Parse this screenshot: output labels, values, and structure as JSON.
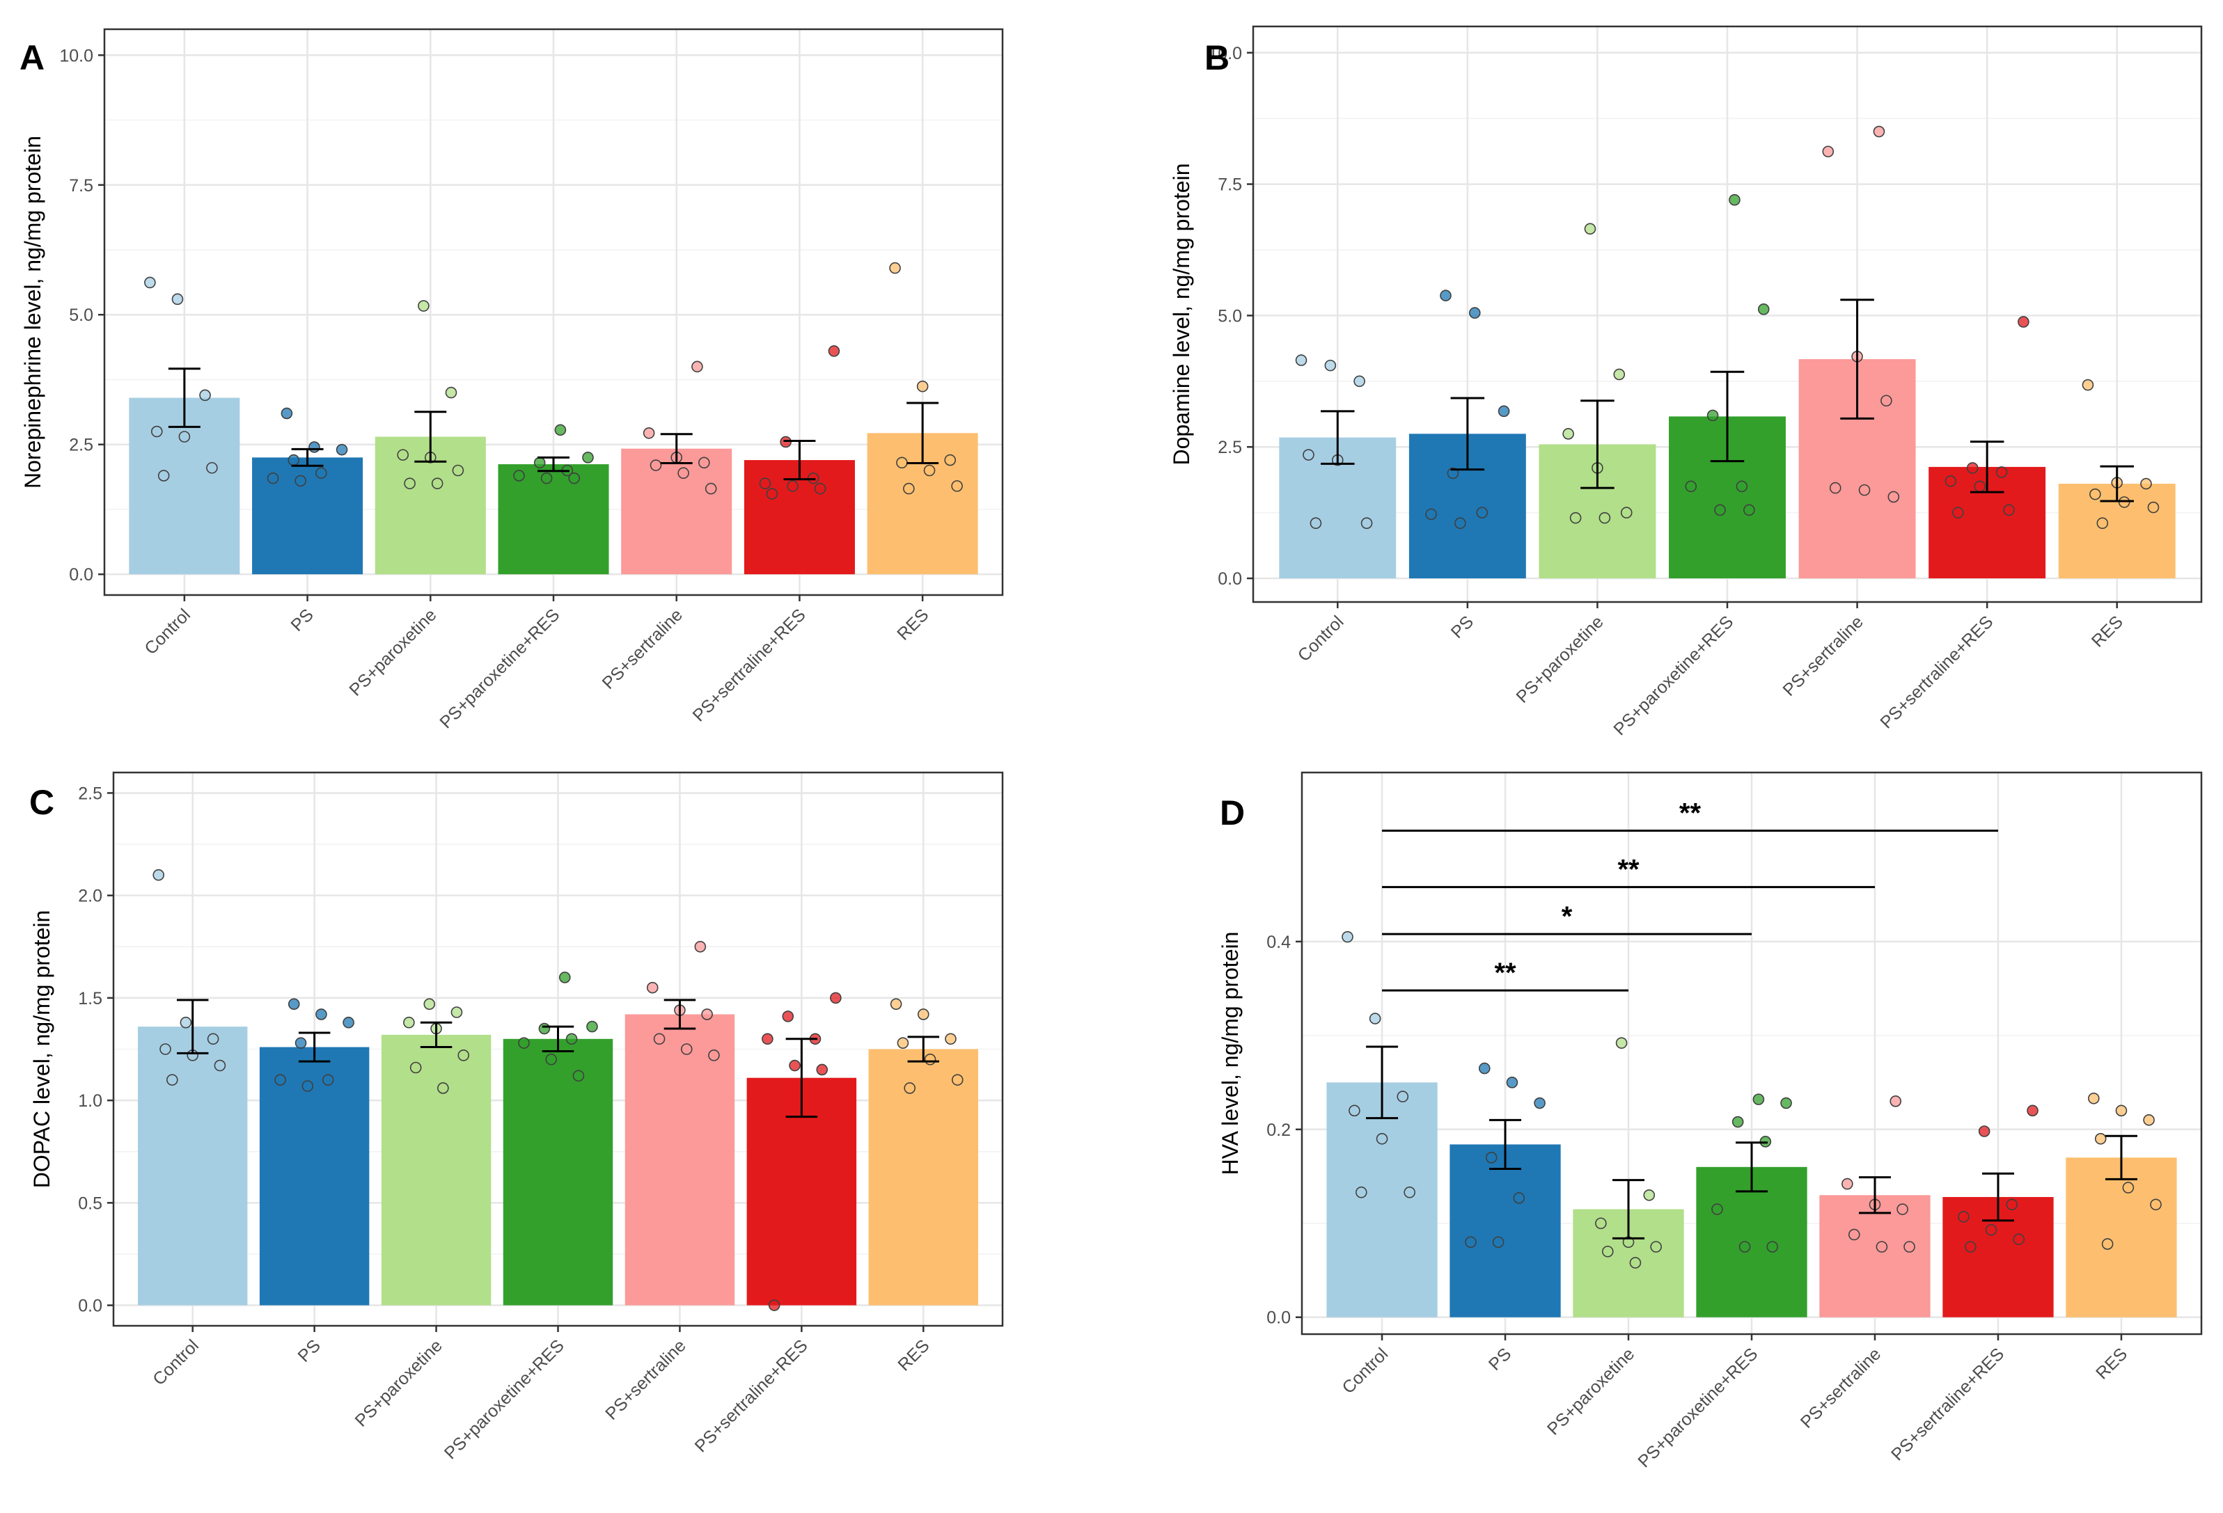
{
  "colors": {
    "Control": "#a6cee3",
    "PS": "#1f78b4",
    "PS+paroxetine": "#b2df8a",
    "PS+paroxetine+RES": "#33a02c",
    "PS+sertraline": "#fb9a99",
    "PS+sertraline+RES": "#e31a1c",
    "RES": "#fdbf6f"
  },
  "chart_data": [
    {
      "type": "bar",
      "panel": "A",
      "title": "",
      "xlabel": "",
      "ylabel": "Norepinephrine level, ng/mg protein",
      "ylim": [
        -0.4,
        10.5
      ],
      "yticks": [
        0.0,
        2.5,
        5.0,
        7.5,
        10.0
      ],
      "ytick_labels": [
        "0.0",
        "2.5",
        "5.0",
        "7.5",
        "10.0"
      ],
      "categories": [
        "Control",
        "PS",
        "PS+paroxetine",
        "PS+paroxetine+RES",
        "PS+sertraline",
        "PS+sertraline+RES",
        "RES"
      ],
      "values": [
        3.4,
        2.25,
        2.65,
        2.12,
        2.42,
        2.2,
        2.72
      ],
      "error": [
        0.56,
        0.16,
        0.48,
        0.13,
        0.28,
        0.37,
        0.58
      ],
      "points": [
        [
          5.62,
          5.3,
          3.45,
          2.75,
          2.65,
          2.05,
          1.9
        ],
        [
          3.1,
          2.45,
          2.4,
          2.2,
          1.95,
          1.85,
          1.8
        ],
        [
          5.17,
          3.5,
          2.3,
          2.25,
          2.0,
          1.75,
          1.75
        ],
        [
          2.78,
          2.25,
          2.15,
          2.0,
          1.9,
          1.85,
          1.85
        ],
        [
          4.0,
          2.72,
          2.25,
          2.15,
          2.1,
          1.95,
          1.65
        ],
        [
          4.3,
          2.55,
          1.85,
          1.75,
          1.7,
          1.65,
          1.55
        ],
        [
          5.9,
          3.62,
          2.2,
          2.15,
          2.0,
          1.7,
          1.65
        ]
      ]
    },
    {
      "type": "bar",
      "panel": "B",
      "title": "",
      "xlabel": "",
      "ylabel": "Dopamine level, ng/mg protein",
      "ylim": [
        -0.45,
        10.5
      ],
      "yticks": [
        0.0,
        2.5,
        5.0,
        7.5,
        10.0
      ],
      "ytick_labels": [
        "0.0",
        "2.5",
        "5.0",
        "7.5",
        "10.0"
      ],
      "categories": [
        "Control",
        "PS",
        "PS+paroxetine",
        "PS+paroxetine+RES",
        "PS+sertraline",
        "PS+sertraline+RES",
        "RES"
      ],
      "values": [
        2.68,
        2.75,
        2.55,
        3.08,
        4.17,
        2.12,
        1.8
      ],
      "error": [
        0.5,
        0.68,
        0.83,
        0.85,
        1.13,
        0.48,
        0.33
      ],
      "points": [
        [
          4.15,
          4.05,
          3.75,
          2.35,
          2.25,
          1.05,
          1.05
        ],
        [
          5.38,
          5.05,
          3.18,
          2.0,
          1.25,
          1.22,
          1.05
        ],
        [
          6.65,
          3.88,
          2.75,
          2.1,
          1.25,
          1.15,
          1.15
        ],
        [
          7.2,
          5.12,
          3.1,
          1.75,
          1.75,
          1.3,
          1.3
        ],
        [
          8.5,
          8.12,
          4.22,
          3.38,
          1.72,
          1.68,
          1.55
        ],
        [
          4.88,
          2.1,
          2.02,
          1.85,
          1.75,
          1.3,
          1.25
        ],
        [
          3.68,
          1.82,
          1.8,
          1.6,
          1.45,
          1.35,
          1.05
        ]
      ]
    },
    {
      "type": "bar",
      "panel": "C",
      "title": "",
      "xlabel": "",
      "ylabel": "DOPAC level, ng/mg protein",
      "ylim": [
        -0.1,
        2.6
      ],
      "yticks": [
        0.0,
        0.5,
        1.0,
        1.5,
        2.0,
        2.5
      ],
      "ytick_labels": [
        "0.0",
        "0.5",
        "1.0",
        "1.5",
        "2.0",
        "2.5"
      ],
      "categories": [
        "Control",
        "PS",
        "PS+paroxetine",
        "PS+paroxetine+RES",
        "PS+sertraline",
        "PS+sertraline+RES",
        "RES"
      ],
      "values": [
        1.36,
        1.26,
        1.32,
        1.3,
        1.42,
        1.11,
        1.25
      ],
      "error": [
        0.13,
        0.07,
        0.06,
        0.06,
        0.07,
        0.19,
        0.06
      ],
      "points": [
        [
          2.1,
          1.38,
          1.3,
          1.25,
          1.22,
          1.17,
          1.1
        ],
        [
          1.47,
          1.42,
          1.38,
          1.28,
          1.1,
          1.1,
          1.07
        ],
        [
          1.47,
          1.43,
          1.38,
          1.35,
          1.22,
          1.16,
          1.06
        ],
        [
          1.6,
          1.36,
          1.35,
          1.3,
          1.28,
          1.2,
          1.12
        ],
        [
          1.75,
          1.55,
          1.44,
          1.42,
          1.3,
          1.25,
          1.22
        ],
        [
          1.5,
          1.41,
          1.3,
          1.3,
          1.17,
          1.15,
          0.0
        ],
        [
          1.47,
          1.42,
          1.3,
          1.28,
          1.2,
          1.1,
          1.06
        ]
      ]
    },
    {
      "type": "bar",
      "panel": "D",
      "title": "",
      "xlabel": "",
      "ylabel": "HVA level, ng/mg protein",
      "ylim": [
        -0.018,
        0.58
      ],
      "yticks": [
        0.0,
        0.2,
        0.4
      ],
      "ytick_labels": [
        "0.0",
        "0.2",
        "0.4"
      ],
      "categories": [
        "Control",
        "PS",
        "PS+paroxetine",
        "PS+paroxetine+RES",
        "PS+sertraline",
        "PS+sertraline+RES",
        "RES"
      ],
      "values": [
        0.25,
        0.184,
        0.115,
        0.16,
        0.13,
        0.128,
        0.17
      ],
      "error": [
        0.038,
        0.026,
        0.031,
        0.026,
        0.019,
        0.025,
        0.023
      ],
      "points": [
        [
          0.405,
          0.318,
          0.235,
          0.22,
          0.19,
          0.133,
          0.133
        ],
        [
          0.265,
          0.25,
          0.228,
          0.17,
          0.127,
          0.08,
          0.08
        ],
        [
          0.292,
          0.13,
          0.1,
          0.08,
          0.075,
          0.07,
          0.058
        ],
        [
          0.232,
          0.228,
          0.208,
          0.187,
          0.115,
          0.075,
          0.075
        ],
        [
          0.23,
          0.142,
          0.12,
          0.115,
          0.088,
          0.075,
          0.075
        ],
        [
          0.22,
          0.198,
          0.12,
          0.107,
          0.093,
          0.083,
          0.075
        ],
        [
          0.233,
          0.22,
          0.21,
          0.19,
          0.138,
          0.12,
          0.078
        ]
      ],
      "significance": [
        {
          "from": "Control",
          "to": "PS+sertraline+RES",
          "y": 0.518,
          "label": "**"
        },
        {
          "from": "Control",
          "to": "PS+sertraline",
          "y": 0.458,
          "label": "**"
        },
        {
          "from": "Control",
          "to": "PS+paroxetine+RES",
          "y": 0.408,
          "label": "*"
        },
        {
          "from": "Control",
          "to": "PS+paroxetine",
          "y": 0.348,
          "label": "**"
        }
      ]
    }
  ]
}
